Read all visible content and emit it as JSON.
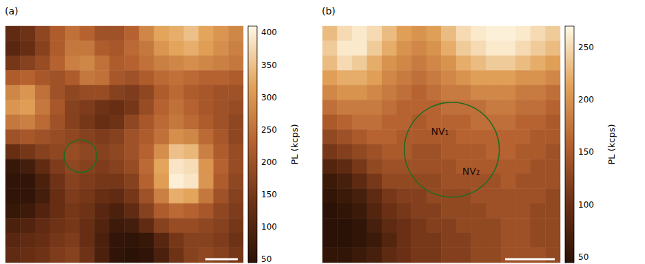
{
  "chart_data": [
    {
      "type": "heatmap",
      "title": "(a)",
      "tick_labels": false,
      "colorbar": {
        "label": "PL (kcps)",
        "range": [
          45,
          410
        ],
        "ticks": [
          50,
          100,
          150,
          200,
          250,
          300,
          350,
          400
        ]
      },
      "circle": {
        "x": 5.05,
        "y": 8.8,
        "r": 1.1
      },
      "annotations": [],
      "cells": [
        [
          120,
          140,
          180,
          220,
          250,
          230,
          200,
          200,
          230,
          280,
          320,
          330,
          350,
          320,
          300,
          280
        ],
        [
          110,
          130,
          170,
          220,
          260,
          260,
          220,
          210,
          240,
          260,
          300,
          320,
          330,
          310,
          290,
          270
        ],
        [
          150,
          170,
          190,
          230,
          270,
          280,
          250,
          220,
          230,
          250,
          270,
          280,
          290,
          280,
          270,
          260
        ],
        [
          220,
          230,
          210,
          200,
          220,
          260,
          250,
          210,
          200,
          220,
          240,
          250,
          240,
          230,
          230,
          220
        ],
        [
          280,
          300,
          250,
          200,
          180,
          190,
          190,
          170,
          160,
          180,
          220,
          240,
          220,
          210,
          200,
          200
        ],
        [
          300,
          310,
          260,
          210,
          170,
          160,
          140,
          130,
          150,
          190,
          230,
          250,
          230,
          210,
          200,
          190
        ],
        [
          260,
          270,
          240,
          200,
          170,
          150,
          130,
          140,
          180,
          210,
          240,
          260,
          240,
          220,
          200,
          180
        ],
        [
          200,
          210,
          200,
          190,
          180,
          170,
          160,
          170,
          200,
          220,
          250,
          290,
          280,
          240,
          210,
          180
        ],
        [
          130,
          150,
          170,
          180,
          190,
          180,
          170,
          180,
          200,
          230,
          290,
          350,
          340,
          270,
          220,
          190
        ],
        [
          60,
          80,
          120,
          160,
          180,
          170,
          160,
          170,
          190,
          240,
          320,
          390,
          380,
          300,
          230,
          190
        ],
        [
          50,
          55,
          90,
          140,
          170,
          160,
          150,
          150,
          170,
          230,
          310,
          400,
          390,
          300,
          220,
          180
        ],
        [
          50,
          55,
          80,
          130,
          160,
          150,
          130,
          120,
          150,
          200,
          270,
          330,
          320,
          260,
          200,
          170
        ],
        [
          60,
          70,
          100,
          130,
          150,
          140,
          110,
          90,
          120,
          170,
          220,
          240,
          230,
          210,
          180,
          160
        ],
        [
          90,
          100,
          120,
          140,
          150,
          130,
          100,
          70,
          80,
          120,
          170,
          190,
          190,
          180,
          170,
          150
        ],
        [
          110,
          120,
          130,
          150,
          160,
          130,
          90,
          55,
          50,
          60,
          110,
          150,
          170,
          170,
          160,
          140
        ],
        [
          120,
          130,
          140,
          160,
          170,
          140,
          90,
          50,
          45,
          50,
          90,
          140,
          170,
          180,
          170,
          150
        ]
      ]
    },
    {
      "type": "heatmap",
      "title": "(b)",
      "tick_labels": false,
      "colorbar": {
        "label": "PL (kcps)",
        "range": [
          45,
          270
        ],
        "ticks": [
          50,
          100,
          150,
          200,
          250
        ]
      },
      "circle": {
        "x": 8.7,
        "y": 8.3,
        "r": 3.2
      },
      "annotations": [
        {
          "text": "NV₁",
          "x": 7.9,
          "y": 7.1
        },
        {
          "text": "NV₂",
          "x": 10.0,
          "y": 9.8
        }
      ],
      "cells": [
        [
          230,
          250,
          260,
          250,
          230,
          210,
          200,
          210,
          230,
          250,
          260,
          265,
          265,
          260,
          250,
          240
        ],
        [
          240,
          260,
          260,
          240,
          220,
          200,
          190,
          200,
          220,
          240,
          250,
          260,
          260,
          250,
          240,
          230
        ],
        [
          230,
          250,
          240,
          220,
          200,
          190,
          180,
          190,
          200,
          220,
          230,
          240,
          240,
          230,
          220,
          210
        ],
        [
          210,
          220,
          220,
          210,
          190,
          180,
          170,
          180,
          190,
          200,
          210,
          210,
          210,
          200,
          200,
          190
        ],
        [
          190,
          200,
          200,
          190,
          180,
          170,
          160,
          170,
          180,
          180,
          190,
          190,
          190,
          180,
          180,
          170
        ],
        [
          170,
          180,
          180,
          180,
          170,
          160,
          160,
          160,
          170,
          170,
          170,
          180,
          180,
          170,
          170,
          160
        ],
        [
          150,
          160,
          170,
          170,
          160,
          160,
          150,
          160,
          160,
          160,
          170,
          170,
          170,
          160,
          160,
          150
        ],
        [
          130,
          140,
          150,
          160,
          160,
          150,
          150,
          150,
          150,
          160,
          160,
          160,
          160,
          160,
          150,
          150
        ],
        [
          110,
          120,
          130,
          140,
          150,
          150,
          140,
          140,
          150,
          150,
          150,
          160,
          160,
          150,
          150,
          140
        ],
        [
          80,
          90,
          110,
          130,
          140,
          140,
          140,
          140,
          140,
          150,
          150,
          150,
          150,
          150,
          140,
          140
        ],
        [
          60,
          70,
          90,
          110,
          130,
          130,
          130,
          130,
          140,
          140,
          140,
          140,
          150,
          140,
          140,
          140
        ],
        [
          50,
          60,
          70,
          90,
          110,
          120,
          120,
          130,
          130,
          130,
          140,
          140,
          140,
          140,
          140,
          130
        ],
        [
          45,
          50,
          60,
          80,
          100,
          110,
          120,
          120,
          130,
          130,
          130,
          140,
          140,
          140,
          130,
          130
        ],
        [
          45,
          45,
          50,
          70,
          90,
          100,
          110,
          120,
          120,
          130,
          130,
          130,
          140,
          140,
          130,
          130
        ],
        [
          45,
          45,
          50,
          60,
          80,
          100,
          110,
          110,
          120,
          120,
          130,
          130,
          140,
          140,
          130,
          130
        ],
        [
          50,
          50,
          60,
          70,
          90,
          100,
          110,
          110,
          120,
          120,
          130,
          130,
          140,
          140,
          140,
          130
        ]
      ]
    }
  ]
}
